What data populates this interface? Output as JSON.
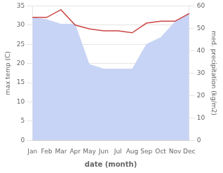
{
  "chart_data": {
    "type": "line",
    "xlabel": "date (month)",
    "ylabel": "max temp (C)",
    "y2label": "med. precipitation (kg/m2)",
    "categories": [
      "Jan",
      "Feb",
      "Mar",
      "Apr",
      "May",
      "Jun",
      "Jul",
      "Aug",
      "Sep",
      "Oct",
      "Nov",
      "Dec"
    ],
    "series": [
      {
        "type": "area",
        "color": "#c8d4f5",
        "axis": "y2",
        "values": [
          55,
          54,
          52,
          52,
          34,
          32,
          32,
          32,
          43,
          46,
          53,
          57
        ]
      },
      {
        "type": "line",
        "color": "#cc4444",
        "values": [
          32.0,
          32.0,
          34.0,
          30.0,
          29.0,
          28.5,
          28.5,
          28.0,
          30.5,
          31.0,
          31.0,
          33.0
        ]
      }
    ],
    "ylim": [
      0,
      35
    ],
    "yticks": [
      0,
      5,
      10,
      15,
      20,
      25,
      30,
      35
    ],
    "y2lim": [
      0,
      60
    ],
    "y2ticks": [
      0,
      10,
      20,
      30,
      40,
      50,
      60
    ],
    "grid": true
  }
}
